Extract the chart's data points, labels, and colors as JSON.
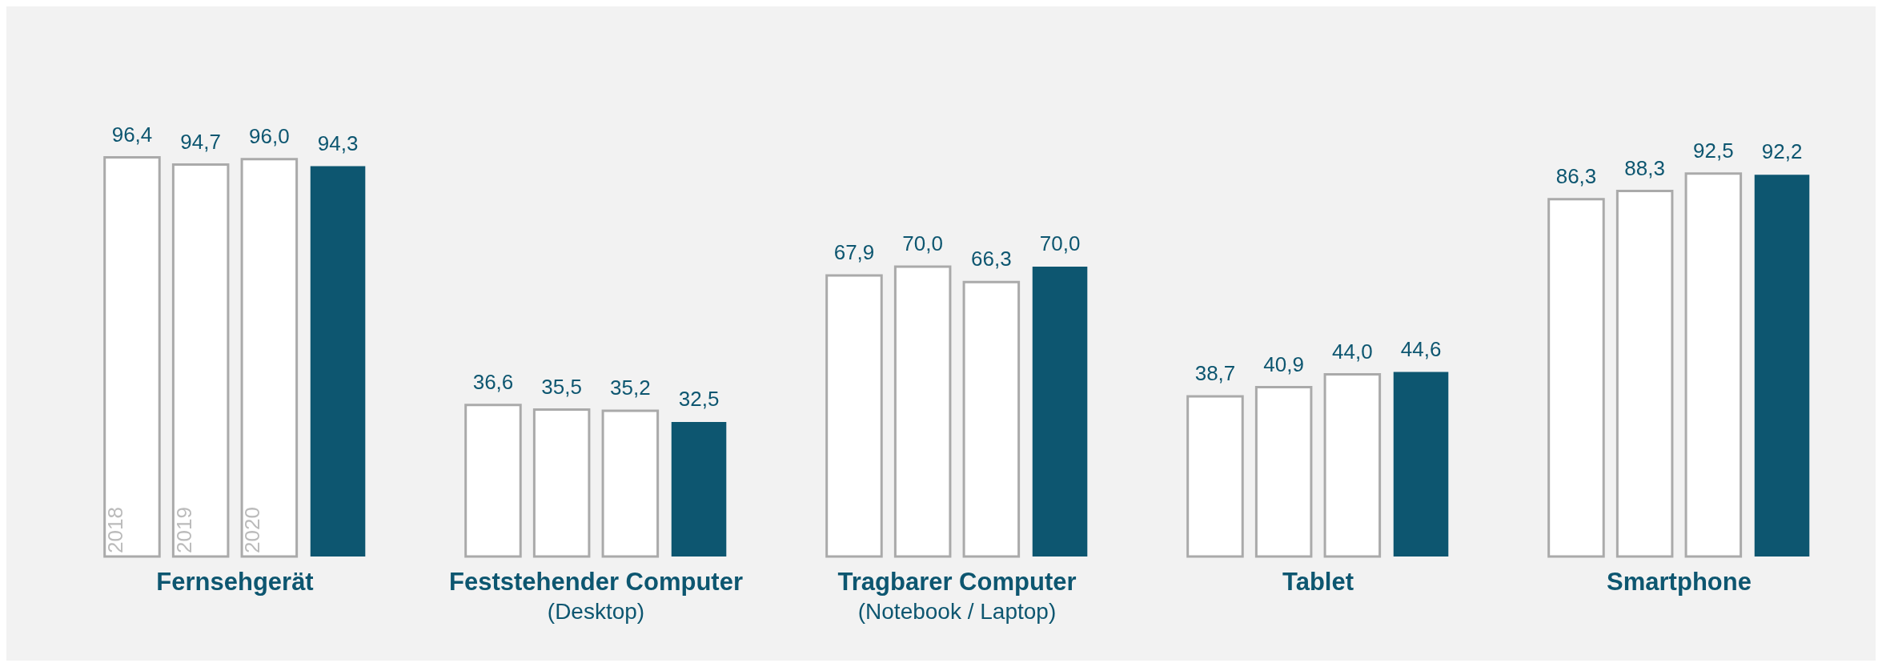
{
  "chart_data": {
    "type": "bar",
    "categories": [
      "Fernsehgerät",
      "Feststehender Computer\n(Desktop)",
      "Tragbarer Computer\n(Notebook / Laptop)",
      "Tablet",
      "Smartphone"
    ],
    "series": [
      {
        "name": "2018",
        "color": "#ffffff",
        "values": [
          96.4,
          36.6,
          67.9,
          38.7,
          86.3
        ],
        "value_labels": [
          "96,4",
          "36,6",
          "67,9",
          "38,7",
          "86,3"
        ]
      },
      {
        "name": "2019",
        "color": "#ffffff",
        "values": [
          94.7,
          35.5,
          70.0,
          40.9,
          88.3
        ],
        "value_labels": [
          "94,7",
          "35,5",
          "70,0",
          "40,9",
          "88,3"
        ]
      },
      {
        "name": "2020",
        "color": "#ffffff",
        "values": [
          96.0,
          35.2,
          66.3,
          44.0,
          92.5
        ],
        "value_labels": [
          "96,0",
          "35,2",
          "66,3",
          "44,0",
          "92,5"
        ]
      },
      {
        "color": "#0d5670",
        "values": [
          94.3,
          32.5,
          70.0,
          44.6,
          92.2
        ],
        "value_labels": [
          "94,3",
          "32,5",
          "70,0",
          "44,6",
          "92,2"
        ]
      }
    ],
    "legend": false
  }
}
